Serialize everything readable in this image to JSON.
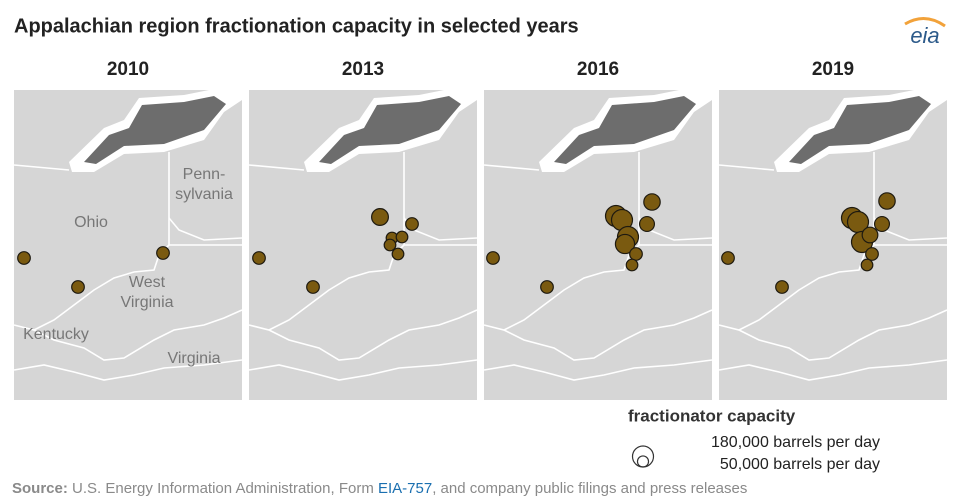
{
  "title": "Appalachian region fractionation capacity in selected years",
  "logo": "eia",
  "panels": [
    {
      "year": "2010",
      "capacities": [
        65000,
        65000,
        65000
      ]
    },
    {
      "year": "2013",
      "capacities": [
        65000,
        65000,
        65000,
        115000,
        55000,
        55000,
        55000,
        55000
      ]
    },
    {
      "year": "2016",
      "capacities": [
        65000,
        65000,
        180000,
        180000,
        110000,
        90000,
        180000,
        150000,
        65000,
        55000
      ]
    },
    {
      "year": "2019",
      "capacities": [
        65000,
        65000,
        180000,
        180000,
        110000,
        90000,
        180000,
        100000,
        65000,
        55000
      ]
    }
  ],
  "map_labels": [
    [
      "Ohio"
    ],
    [
      "Penn-",
      "sylvania"
    ],
    [
      "West",
      "Virginia"
    ],
    [
      "Kentucky"
    ],
    [
      "Virginia"
    ]
  ],
  "legend": {
    "title": "fractionator capacity",
    "sizes": [
      {
        "value": 180000,
        "label": "180,000 barrels per day"
      },
      {
        "value": 50000,
        "label": "50,000 barrels per day"
      }
    ]
  },
  "source": {
    "label": "Source:",
    "text": "U.S. Energy Information Administration, Form",
    "link": "EIA-757",
    "rest": ", and company public filings and press releases"
  }
}
